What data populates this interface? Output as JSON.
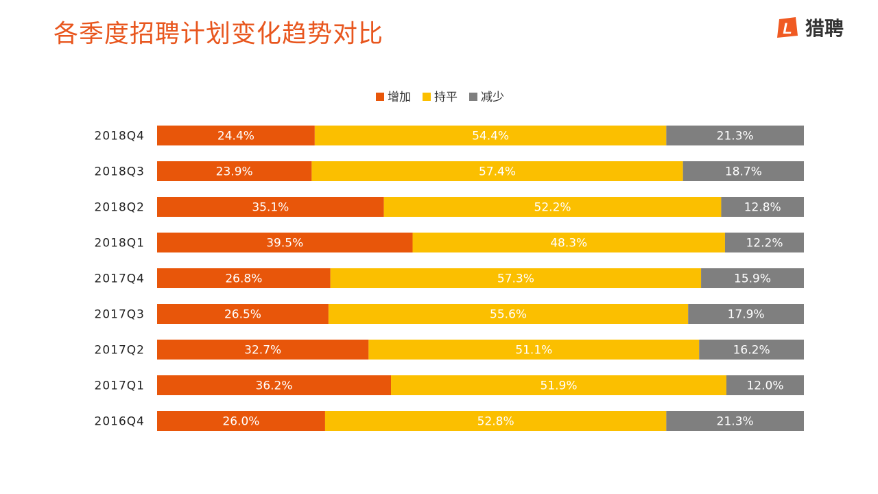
{
  "header": {
    "title": "各季度招聘计划变化趋势对比",
    "logo_text": "猎聘",
    "logo_mark_letter": "L"
  },
  "colors": {
    "title": "#e8561e",
    "increase": "#e8560a",
    "flat": "#fbbf00",
    "decrease": "#7f7f7f",
    "logo_mark": "#f05a22"
  },
  "chart_data": {
    "type": "bar",
    "orientation": "horizontal",
    "stacked": true,
    "percent_stacked": true,
    "categories": [
      "2018Q4",
      "2018Q3",
      "2018Q2",
      "2018Q1",
      "2017Q4",
      "2017Q3",
      "2017Q2",
      "2017Q1",
      "2016Q4"
    ],
    "series": [
      {
        "name": "增加",
        "values": [
          24.4,
          23.9,
          35.1,
          39.5,
          26.8,
          26.5,
          32.7,
          36.2,
          26.0
        ],
        "labels": [
          "24.4%",
          "23.9%",
          "35.1%",
          "39.5%",
          "26.8%",
          "26.5%",
          "32.7%",
          "36.2%",
          "26.0%"
        ]
      },
      {
        "name": "持平",
        "values": [
          54.4,
          57.4,
          52.2,
          48.3,
          57.3,
          55.6,
          51.1,
          51.9,
          52.8
        ],
        "labels": [
          "54.4%",
          "57.4%",
          "52.2%",
          "48.3%",
          "57.3%",
          "55.6%",
          "51.1%",
          "51.9%",
          "52.8%"
        ]
      },
      {
        "name": "减少",
        "values": [
          21.3,
          18.7,
          12.8,
          12.2,
          15.9,
          17.9,
          16.2,
          12.0,
          21.3
        ],
        "labels": [
          "21.3%",
          "18.7%",
          "12.8%",
          "12.2%",
          "15.9%",
          "17.9%",
          "16.2%",
          "12.0%",
          "21.3%"
        ]
      }
    ],
    "legend_position": "top-center",
    "grid": false,
    "xlim": [
      0,
      100
    ]
  }
}
